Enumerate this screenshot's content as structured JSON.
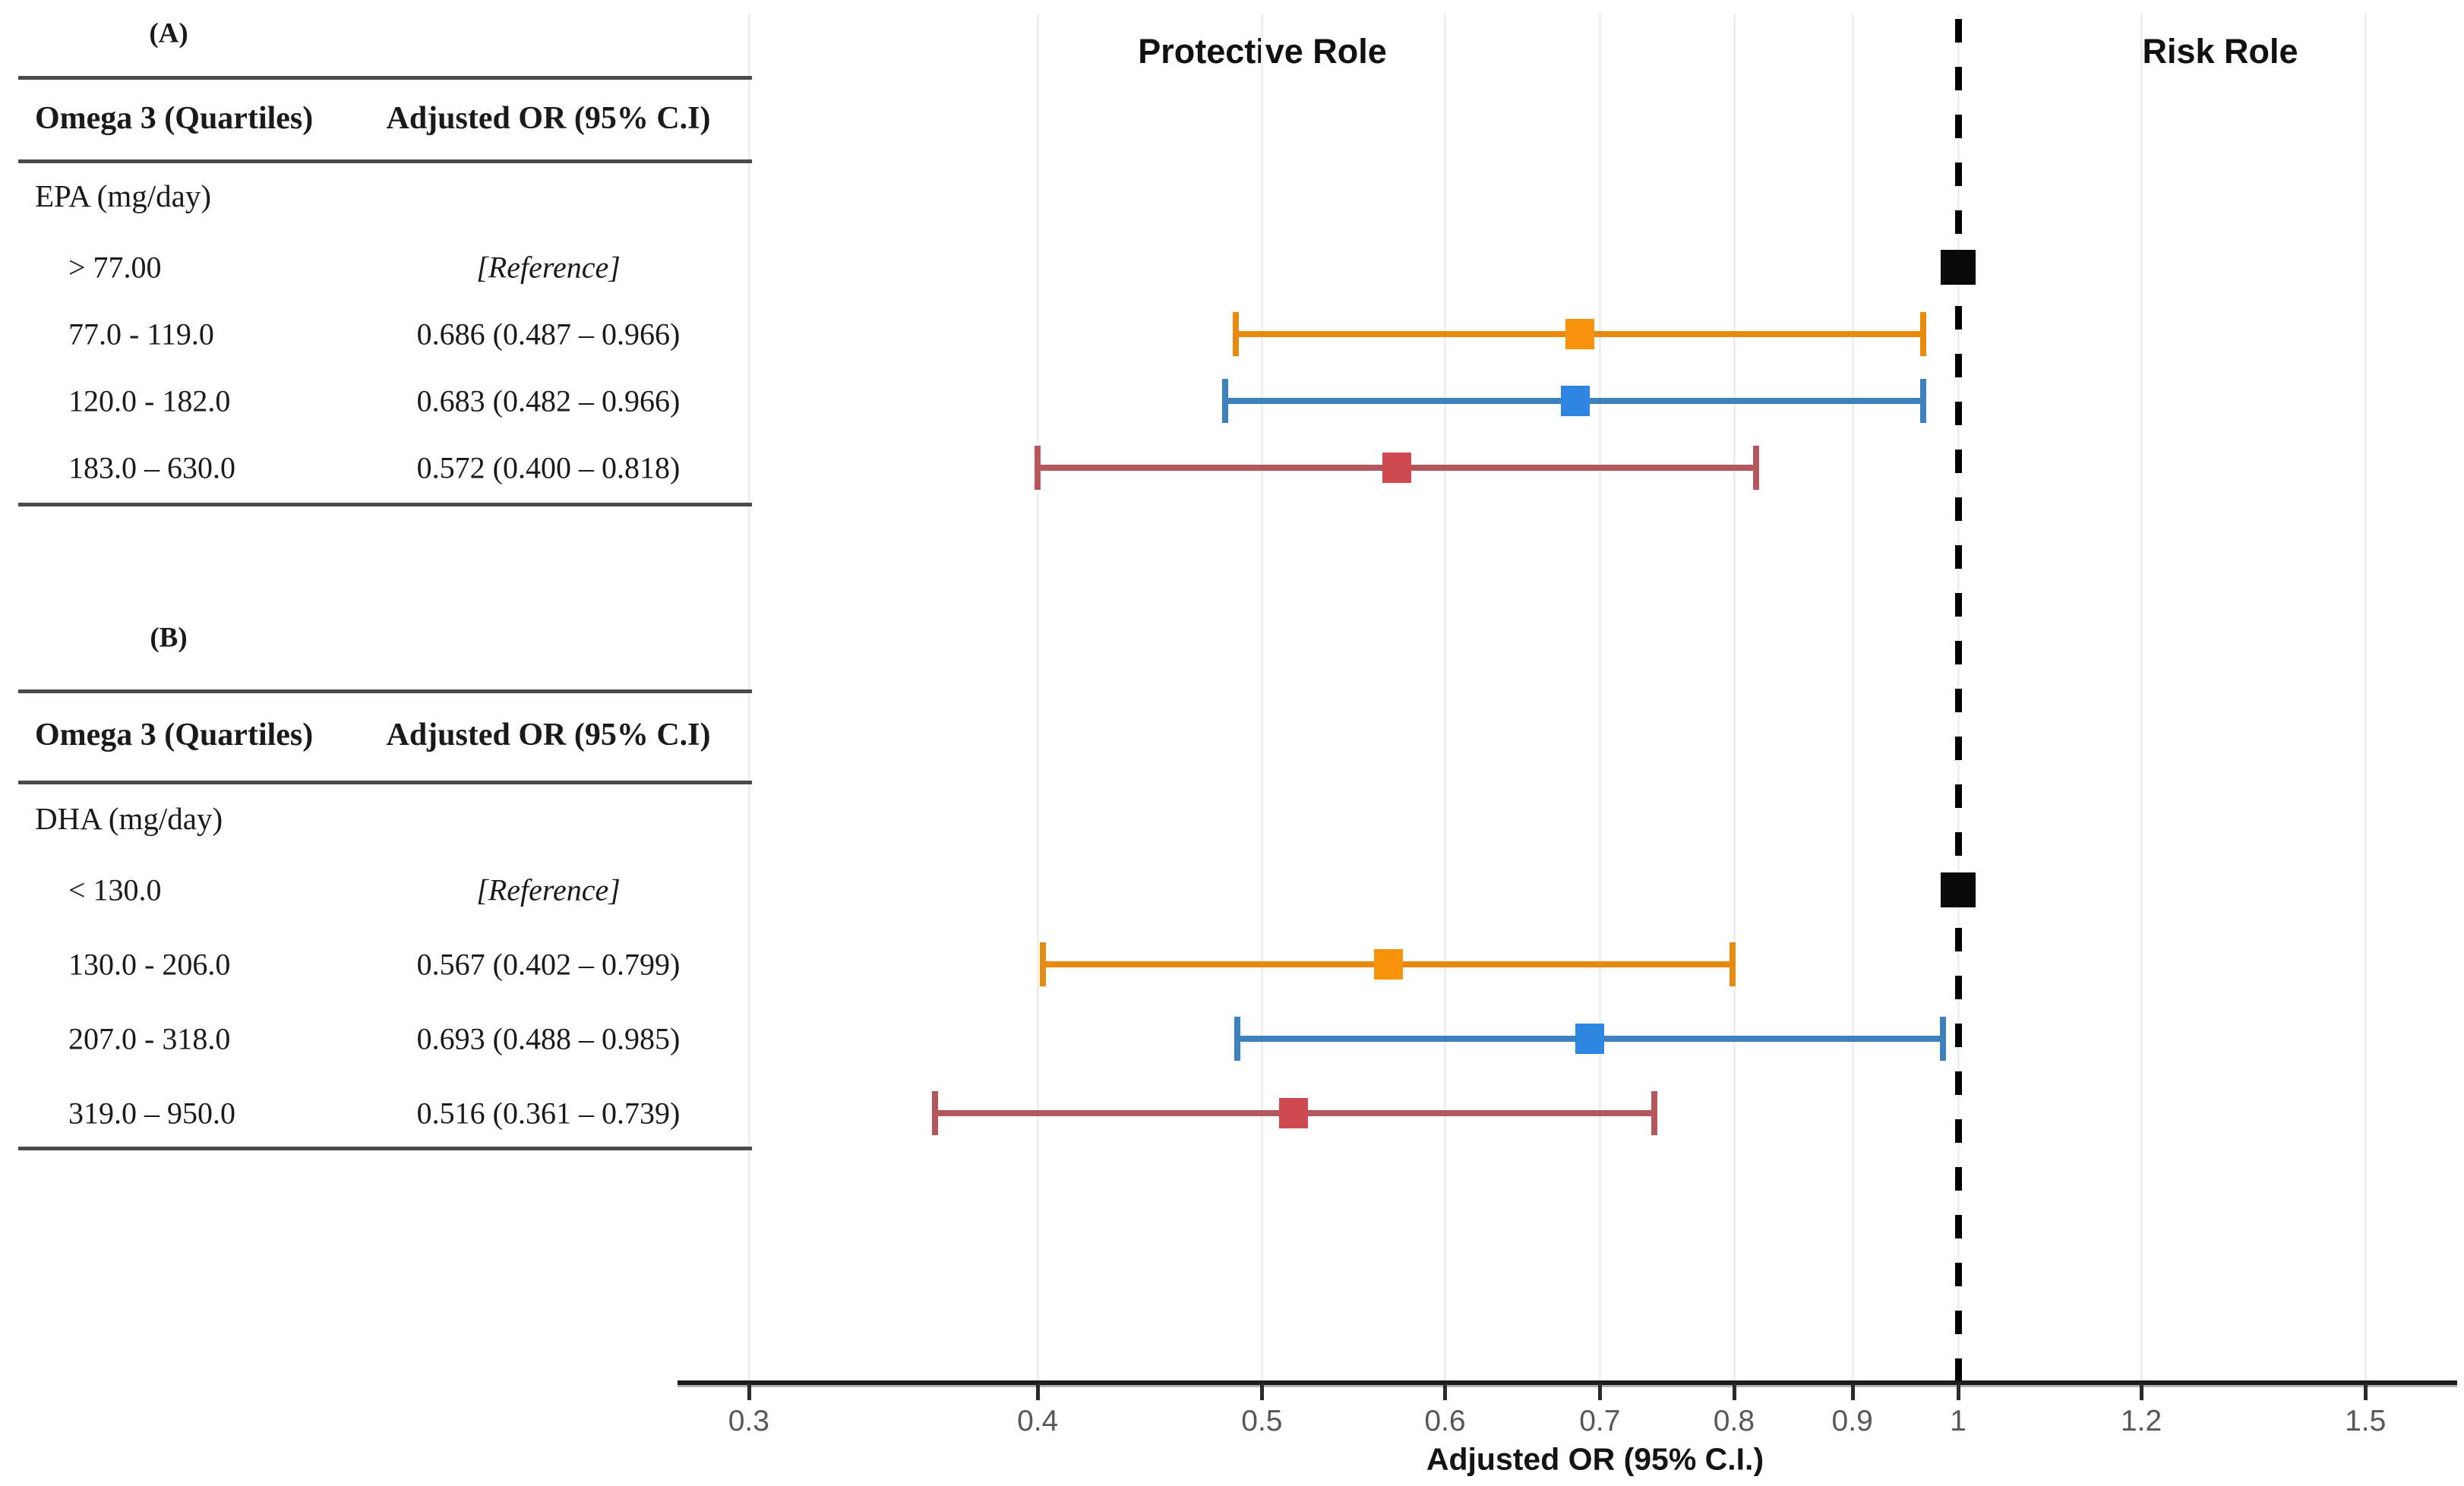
{
  "figure_background": "#ffffff",
  "panels": [
    {
      "label": "(A)",
      "columns": {
        "quartiles": "Omega 3 (Quartiles)",
        "adjusted_or": "Adjusted OR (95% C.I)"
      },
      "group": "EPA (mg/day)",
      "rows": [
        {
          "quartile": "> 77.00",
          "value": "[Reference]",
          "reference": true,
          "series": "reference"
        },
        {
          "quartile": "77.0 - 119.0",
          "value": "0.686 (0.487 – 0.966)",
          "reference": false,
          "series": "q2"
        },
        {
          "quartile": "120.0 - 182.0",
          "value": "0.683 (0.482 – 0.966)",
          "reference": false,
          "series": "q3"
        },
        {
          "quartile": "183.0 – 630.0",
          "value": "0.572 (0.400 – 0.818)",
          "reference": false,
          "series": "q4"
        }
      ]
    },
    {
      "label": "(B)",
      "columns": {
        "quartiles": "Omega 3 (Quartiles)",
        "adjusted_or": "Adjusted OR (95% C.I)"
      },
      "group": "DHA (mg/day)",
      "rows": [
        {
          "quartile": "< 130.0",
          "value": "[Reference]",
          "reference": true,
          "series": "reference"
        },
        {
          "quartile": "130.0 - 206.0",
          "value": "0.567 (0.402 – 0.799)",
          "reference": false,
          "series": "q2"
        },
        {
          "quartile": "207.0 - 318.0",
          "value": "0.693 (0.488 – 0.985)",
          "reference": false,
          "series": "q3"
        },
        {
          "quartile": "319.0 – 950.0",
          "value": "0.516 (0.361 – 0.739)",
          "reference": false,
          "series": "q4"
        }
      ]
    }
  ],
  "chart": {
    "region_labels": {
      "protective": "Protective Role",
      "risk": "Risk Role"
    },
    "x_axis_title": "Adjusted OR (95% C.I.)"
  },
  "chart_data": {
    "type": "scatter",
    "subtype": "forest-plot",
    "xlabel": "Adjusted OR (95% C.I.)",
    "x_scale": "log",
    "xlim": [
      0.28,
      1.65
    ],
    "x_ticks": [
      0.3,
      0.4,
      0.5,
      0.6,
      0.7,
      0.8,
      0.9,
      1,
      1.2,
      1.5
    ],
    "x_tick_labels": [
      "0.3",
      "0.4",
      "0.5",
      "0.6",
      "0.7",
      "0.8",
      "0.9",
      "1",
      "1.2",
      "1.5"
    ],
    "reference_line_x": 1.0,
    "grid": "vertical-light",
    "annotations": {
      "left_of_reference": "Protective Role",
      "right_of_reference": "Risk Role"
    },
    "series": [
      {
        "name": "EPA (mg/day)",
        "panel": "A",
        "points": [
          {
            "category": "> 77.00",
            "or": 1.0,
            "ci_low": null,
            "ci_high": null,
            "reference": true,
            "series": "reference"
          },
          {
            "category": "77.0 - 119.0",
            "or": 0.686,
            "ci_low": 0.487,
            "ci_high": 0.966,
            "reference": false,
            "series": "q2"
          },
          {
            "category": "120.0 - 182.0",
            "or": 0.683,
            "ci_low": 0.482,
            "ci_high": 0.966,
            "reference": false,
            "series": "q3"
          },
          {
            "category": "183.0 – 630.0",
            "or": 0.572,
            "ci_low": 0.4,
            "ci_high": 0.818,
            "reference": false,
            "series": "q4"
          }
        ]
      },
      {
        "name": "DHA (mg/day)",
        "panel": "B",
        "points": [
          {
            "category": "< 130.0",
            "or": 1.0,
            "ci_low": null,
            "ci_high": null,
            "reference": true,
            "series": "reference"
          },
          {
            "category": "130.0 - 206.0",
            "or": 0.567,
            "ci_low": 0.402,
            "ci_high": 0.799,
            "reference": false,
            "series": "q2"
          },
          {
            "category": "207.0 - 318.0",
            "or": 0.693,
            "ci_low": 0.488,
            "ci_high": 0.985,
            "reference": false,
            "series": "q3"
          },
          {
            "category": "319.0 – 950.0",
            "or": 0.516,
            "ci_low": 0.361,
            "ci_high": 0.739,
            "reference": false,
            "series": "q4"
          }
        ]
      }
    ]
  },
  "colors": {
    "reference_marker": "#0a0a0a",
    "q2_line": "#e88a0e",
    "q2_marker": "#f7930a",
    "q3_line": "#3c80be",
    "q3_marker": "#2e86e0",
    "q4_line": "#b4575c",
    "q4_marker": "#ce4950",
    "dashed_reference_line": "#000000",
    "gridline": "#f0eff0",
    "axis": "#1c1c1c",
    "tick_label": "#575757"
  }
}
